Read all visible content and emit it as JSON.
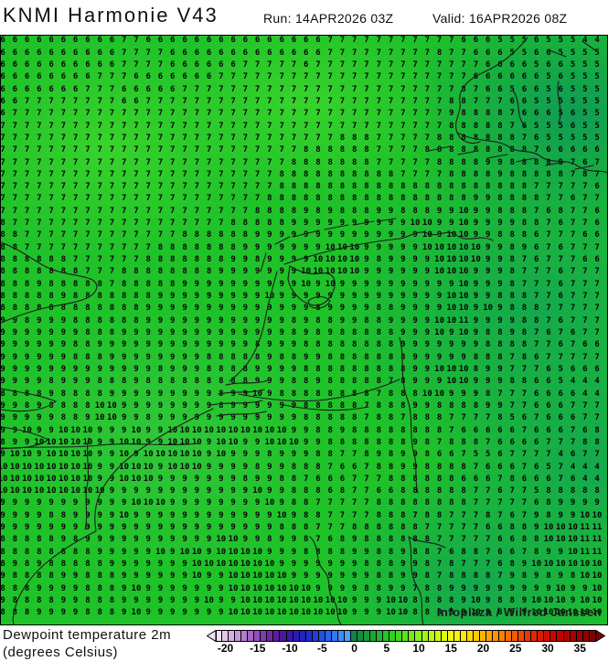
{
  "header": {
    "title": "KNMI Harmonie V43",
    "run": "Run: 14APR2026 03Z",
    "valid": "Valid: 16APR2026 08Z"
  },
  "legend": {
    "line1": "Dewpoint temperature 2m",
    "line2": "(degrees Celsius)"
  },
  "attribution": "Infoplaza / Wilfred Janssen",
  "colors": {
    "map_base": "#1fc229",
    "map_light": "#38d32c",
    "map_dark": "#14a84e",
    "map_darker": "#0f9c55",
    "coastline": "#1b1b1b",
    "value_text": "#060606",
    "left_arrow": "#f0e2f4",
    "right_arrow": "#800000"
  },
  "colorbar": {
    "tick_labels": [
      "-20",
      "-15",
      "-10",
      "-5",
      "0",
      "5",
      "10",
      "15",
      "20",
      "25",
      "30",
      "35"
    ],
    "tick_start_value": -20,
    "tick_step": 5,
    "segment_start_value": -21,
    "segment_end_value": 37,
    "segments": [
      "#f0e0f4",
      "#e3c8ec",
      "#d4afe2",
      "#c596d8",
      "#b47dce",
      "#a364c4",
      "#9150ba",
      "#7f3cb0",
      "#6e2aa6",
      "#5c1e9e",
      "#4a18a0",
      "#3a16a8",
      "#2c1ab4",
      "#2222c2",
      "#1e2ed0",
      "#203edc",
      "#2452e4",
      "#2a66ec",
      "#327af2",
      "#3c90f6",
      "#48a4fa",
      "#16804c",
      "#168c42",
      "#189a3a",
      "#1ba832",
      "#1fb62c",
      "#26c426",
      "#32d022",
      "#44da20",
      "#5ae220",
      "#72ea1e",
      "#8af01c",
      "#a2f41a",
      "#b8f818",
      "#ccfa16",
      "#defb14",
      "#eefa12",
      "#f8f410",
      "#fce80e",
      "#fed90c",
      "#fec80a",
      "#feb608",
      "#fda406",
      "#fb9205",
      "#f88004",
      "#f56e03",
      "#f15c02",
      "#ec4a02",
      "#e73901",
      "#e12a01",
      "#da1c01",
      "#d21000",
      "#c90800",
      "#bf0300",
      "#b40100",
      "#a80000",
      "#9c0000",
      "#8e0000",
      "#800000"
    ]
  },
  "grid": {
    "rows": [
      "6 6 6 6 6 6 6 6 6 6 7 7 6 6 6 6 6 6 6 6 6 6 6 6 6 6 6 7 7 7 7 7 7 7 7 7 7 7 6 6 6 5 5 5 6 5 5 5 4 4",
      "6 6 6 6 6 6 6 6 6 6 7 7 7 7 6 6 6 6 6 6 6 6 6 6 6 6 6 7 7 7 7 7 7 7 7 7 8 7 7 6 6 6 5 5 6 6 5 5 5 5",
      "6 6 6 6 6 6 6 6 6 6 7 7 7 7 6 6 6 6 6 6 7 7 7 7 7 6 7 7 7 7 7 7 7 7 7 7 7 7 7 7 6 6 6 6 5 6 6 5 5 5",
      "6 6 6 6 6 6 6 6 7 7 7 6 6 6 6 6 6 6 7 7 7 7 7 7 7 7 7 7 7 7 7 7 7 7 7 7 7 7 7 6 6 6 6 6 6 5 6 5 5 5",
      "6 6 6 6 6 6 6 7 7 7 6 6 6 6 6 7 7 7 7 7 7 7 7 7 7 7 7 7 7 7 7 7 7 7 7 7 7 7 8 7 6 6 5 6 6 5 6 5 5 5",
      "6 6 7 7 7 7 7 7 7 7 6 6 7 7 7 7 7 7 7 7 7 7 7 7 7 7 7 7 7 7 7 7 7 7 7 7 7 8 8 7 7 7 6 6 5 5 5 5 5 5",
      "6 7 7 7 7 7 7 7 7 7 7 7 7 7 7 7 7 7 7 7 7 7 7 7 7 7 7 7 7 7 7 7 7 7 7 7 7 9 8 8 8 8 7 6 6 6 5 6 5 5",
      "7 7 7 7 7 7 7 7 7 7 7 7 7 7 7 7 7 7 7 7 7 7 7 7 7 7 7 7 7 7 7 7 7 7 7 7 7 8 8 8 8 8 7 6 5 5 5 6 5 5",
      "7 7 7 7 7 7 7 7 7 7 7 7 7 7 7 7 7 7 7 7 7 7 7 7 7 7 7 7 8 8 8 7 7 7 7 7 8 8 8 8 8 8 8 7 6 5 5 5 5 5",
      "7 7 7 7 7 7 7 7 7 7 7 7 7 7 7 7 7 7 7 7 7 7 7 7 7 8 8 8 8 8 8 7 7 7 7 8 8 8 8 8 8 8 8 8 7 6 6 6 6 6",
      "7 7 7 7 7 7 7 7 7 7 7 7 7 7 7 7 7 7 7 7 7 7 7 7 8 8 8 8 8 8 8 7 7 7 7 7 8 8 8 8 9 9 8 8 8 8 8 7 6 7",
      "7 7 7 7 7 7 7 7 7 7 7 7 7 7 7 7 7 7 7 7 7 7 7 8 8 8 8 8 8 8 8 8 8 7 7 7 7 8 8 8 8 9 8 8 8 8 8 7 8 7",
      "7 7 7 7 7 7 7 7 7 7 7 7 7 7 7 7 7 7 7 7 7 7 7 8 8 8 8 8 8 8 8 8 8 8 8 8 8 8 8 8 8 8 8 8 7 7 7 7 7 6",
      "7 7 7 7 7 7 7 7 7 7 7 7 7 7 7 7 7 7 7 7 7 7 8 8 8 8 8 8 8 8 8 8 8 8 8 8 8 8 8 9 9 8 8 8 8 7 7 6 7 7",
      "7 7 7 7 7 7 7 7 7 7 7 7 7 7 7 7 7 7 7 7 7 8 8 8 8 9 8 9 8 8 8 9 9 8 8 8 9 9 10 9 9 8 8 8 7 6 8 7 7 6",
      "8 7 7 7 7 7 7 7 7 7 7 7 7 7 7 7 7 7 7 8 8 8 8 8 9 9 9 9 9 9 9 9 9 9 10 10 9 9 10 9 9 9 9 8 8 7 6 7 7 6",
      "8 8 7 7 7 7 7 7 7 7 7 7 7 7 7 8 8 8 8 8 8 9 9 9 9 9 9 9 9 9 9 9 9 9 9 10 9 10 10 9 9 8 8 8 6 7 7 7 6 6",
      "8 8 7 7 7 7 7 7 7 7 7 7 7 8 8 8 8 8 8 8 9 9 9 9 9 9 9 10 10 10 9 9 9 9 9 10 10 10 10 10 9 9 8 9 6 7 6 7 7 7",
      "8 8 8 8 8 8 7 7 7 7 7 7 8 8 8 8 8 8 8 9 9 8 9 9 9 9 10 10 10 10 9 8 9 9 9 9 10 10 10 10 9 9 8 7 6 7 7 7 6 6",
      "8 8 8 8 8 8 8 7 7 7 8 8 8 8 8 8 8 8 9 9 9 9 9 9 9 10 10 10 10 10 9 9 9 9 9 9 10 10 10 9 9 9 8 7 7 7 6 7 7 7",
      "8 8 8 9 8 8 8 8 8 7 8 8 8 8 8 9 9 9 9 9 9 9 9 9 9 10 9 10 9 9 9 9 9 9 9 9 9 9 10 9 9 9 8 7 7 7 6 7 7 7",
      "8 8 8 8 8 9 8 8 8 8 8 8 8 9 9 9 9 9 9 9 9 9 10 9 9 9 9 9 9 9 9 9 9 9 9 9 9 10 10 9 9 8 8 8 7 7 6 7 7 7",
      "8 8 8 8 8 8 8 8 8 8 8 8 9 9 9 9 9 9 9 9 9 9 9 9 9 9 8 9 9 9 9 8 8 9 9 9 9 10 10 9 10 9 8 8 8 7 7 7 7 7",
      "9 9 8 9 9 9 8 8 8 8 8 8 9 9 9 9 9 9 9 9 9 9 9 9 8 9 8 8 9 9 8 8 9 9 9 9 10 10 11 9 9 9 9 8 8 7 6 7 7 7",
      "9 9 9 9 9 9 9 8 8 8 9 9 9 9 9 9 9 9 9 9 9 9 9 9 8 9 8 9 8 8 8 8 8 9 9 9 10 9 10 9 8 8 9 8 7 6 7 6 7 7",
      "9 9 9 9 9 9 8 8 9 9 9 9 9 9 9 9 9 9 9 9 9 8 9 9 9 8 8 8 8 8 8 8 8 9 9 9 9 9 9 9 8 8 8 8 7 7 6 7 6 6",
      "9 9 9 9 9 9 8 8 8 9 9 9 9 9 9 9 9 8 8 8 8 8 9 8 8 9 9 8 8 8 8 8 8 8 9 9 9 9 9 8 8 8 7 8 6 7 7 7 7 7",
      "9 9 9 9 9 9 9 9 9 9 9 9 9 8 9 9 9 8 8 8 8 9 9 9 9 8 8 8 8 8 8 8 8 8 9 9 10 10 10 8 9 9 7 7 7 6 5 6 6 6",
      "9 9 9 9 8 9 9 9 8 8 8 9 8 8 8 8 8 8 8 8 8 9 9 9 8 8 9 8 8 8 8 8 7 8 9 9 9 10 10 9 9 9 8 8 6 6 5 4 4 4",
      "8 8 8 8 9 8 8 8 8 9 9 9 9 9 9 9 9 9 8 9 9 10 9 8 8 8 8 8 8 8 8 7 8 8 8 10 10 9 9 9 8 7 7 7 6 6 6 6 4 4",
      "9 9 8 9 8 8 8 8 10 10 9 9 9 9 9 9 9 9 8 9 9 9 9 9 9 8 8 8 8 8 7 8 8 8 9 9 8 8 8 8 9 9 7 7 6 6 6 7 7 7",
      "9 9 9 9 9 8 8 9 10 10 9 9 8 9 9 9 9 9 9 9 9 9 9 9 9 8 8 8 8 8 7 8 8 7 8 8 8 7 7 7 7 8 5 6 7 6 6 6 7 7",
      "9 9 10 9 9 10 10 10 9 9 9 10 9 9 10 10 10 10 10 10 10 10 10 10 9 9 8 8 9 8 8 8 8 8 8 8 8 7 6 6 6 6 6 7 6 6 6 7 6 8",
      "8 9 9 10 10 10 10 10 9 9 10 10 9 9 10 10 10 9 10 10 9 9 10 10 10 9 9 8 8 8 8 8 8 8 9 8 7 8 8 8 7 6 6 6 6 7 7 7 8 8",
      "9 10 10 9 10 10 10 10 9 9 10 9 10 10 10 10 10 9 10 9 9 9 8 9 9 9 8 8 7 7 8 9 8 9 9 8 6 6 7 5 5 6 7 7 7 7 4 6 7 7",
      "10 10 10 10 10 10 10 10 9 9 10 10 10 9 10 10 10 9 9 9 9 8 9 9 8 8 8 7 6 6 7 8 8 9 9 8 8 8 8 7 6 6 6 7 6 5 7 4 4 4",
      "10 10 10 10 10 10 10 10 9 9 10 10 10 9 9 9 9 9 9 9 8 9 9 8 8 7 6 6 6 7 7 7 8 8 8 8 8 8 6 6 6 7 8 6 6 6 7 6 4 4",
      "10 10 10 10 10 10 10 10 10 9 9 9 9 9 9 9 9 9 9 9 9 10 9 9 8 8 8 6 8 7 7 6 6 8 8 8 8 8 8 7 7 6 7 7 5 8 8 8 8 8",
      "9 9 9 9 9 9 9 9 9 9 9 10 10 10 9 9 9 9 9 9 9 9 10 9 8 8 7 7 7 7 7 8 8 8 8 8 8 8 8 7 7 7 7 7 6 8 9 9 9 9",
      "9 9 9 9 8 8 9 9 9 9 10 9 9 9 9 9 9 9 9 9 9 9 9 10 9 8 8 7 7 7 7 8 8 8 7 8 8 7 7 7 8 7 6 7 9 8 9 9 10 10",
      "9 9 9 9 9 9 9 9 9 9 9 9 9 9 9 9 9 9 9 9 9 9 9 8 8 8 7 7 7 8 8 8 8 8 8 7 7 7 7 7 6 6 8 8 9 10 10 10 11 11",
      "8 8 8 8 8 9 8 9 9 9 9 9 9 9 9 9 9 9 10 10 9 9 8 9 9 8 7 6 8 9 8 8 8 8 8 8 7 7 7 7 7 6 6 8 8 10 10 10 11 11",
      "8 8 8 8 8 8 8 8 9 9 9 9 9 10 9 10 10 9 10 10 10 10 9 9 9 8 8 8 8 9 9 8 8 9 8 8 7 6 8 8 7 6 6 7 8 9 9 10 11 11",
      "8 9 8 9 8 8 8 8 8 9 9 9 9 9 9 9 10 10 10 10 10 10 10 9 9 9 9 9 9 9 8 8 8 9 9 8 7 8 7 7 7 6 8 9 10 10 10 10 10 10",
      "9 8 8 8 8 9 9 8 8 8 9 9 9 9 9 9 10 9 9 10 10 10 10 10 9 9 9 9 9 9 9 8 8 9 9 8 7 8 8 8 8 7 9 8 9 8 9 8 10 10",
      "8 8 8 9 9 9 9 8 8 8 9 10 9 9 9 9 9 9 9 10 10 10 10 10 10 10 9 9 9 9 8 8 9 9 7 8 8 9 9 9 9 9 9 9 9 9 10 9 9 10",
      "9 8 8 8 8 9 9 8 8 8 9 9 9 9 9 9 9 10 9 9 10 10 10 10 10 10 10 10 10 9 9 9 10 10 8 8 8 8 9 10 9 8 8 9 10 10 10 9 10 10",
      "8 8 8 9 9 9 9 8 8 8 9 10 9 9 9 9 9 9 9 10 10 10 10 10 10 10 10 10 10 9 9 9 10 10 8 8 8 8 9 10 9 8 8 9 10 10 10 10 10 10"
    ]
  }
}
